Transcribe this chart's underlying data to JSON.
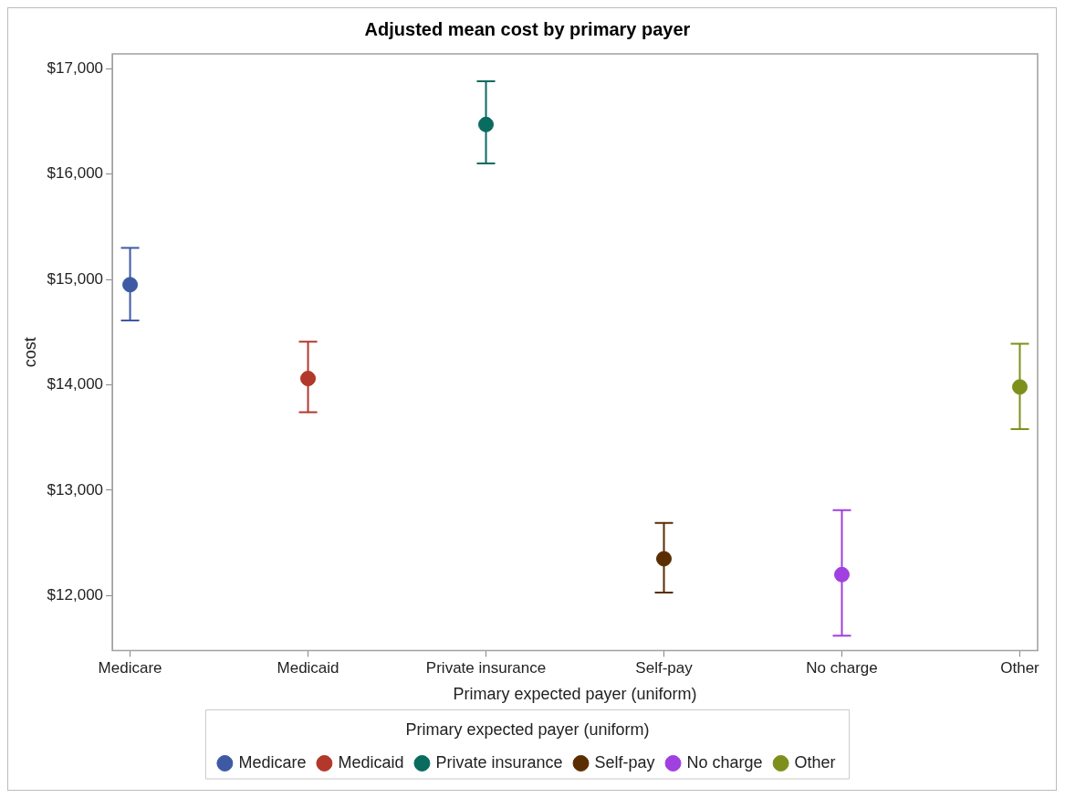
{
  "chart_data": {
    "type": "scatter",
    "title": "Adjusted mean cost by primary payer",
    "xlabel": "Primary expected payer (uniform)",
    "ylabel": "cost",
    "legend_title": "Primary expected payer (uniform)",
    "categories": [
      "Medicare",
      "Medicaid",
      "Private insurance",
      "Self-pay",
      "No charge",
      "Other"
    ],
    "series": [
      {
        "name": "Medicare",
        "color": "#3f5aa4",
        "values": [
          14950,
          null,
          null,
          null,
          null,
          null
        ],
        "errors": [
          [
            14610,
            15300
          ],
          null,
          null,
          null,
          null,
          null
        ]
      },
      {
        "name": "Medicaid",
        "color": "#b2382c",
        "values": [
          null,
          14060,
          null,
          null,
          null,
          null
        ],
        "errors": [
          null,
          [
            13740,
            14410
          ],
          null,
          null,
          null,
          null
        ]
      },
      {
        "name": "Private insurance",
        "color": "#0a6b5f",
        "values": [
          null,
          null,
          16470,
          null,
          null,
          null
        ],
        "errors": [
          null,
          null,
          [
            16100,
            16880
          ],
          null,
          null,
          null
        ]
      },
      {
        "name": "Self-pay",
        "color": "#5a2e00",
        "values": [
          null,
          null,
          null,
          12350,
          null,
          null
        ],
        "errors": [
          null,
          null,
          null,
          [
            12030,
            12690
          ],
          null,
          null
        ]
      },
      {
        "name": "No charge",
        "color": "#a040e0",
        "values": [
          null,
          null,
          null,
          null,
          12200,
          null
        ],
        "errors": [
          null,
          null,
          null,
          null,
          [
            11620,
            12810
          ],
          null
        ]
      },
      {
        "name": "Other",
        "color": "#7f8f1c",
        "values": [
          null,
          null,
          null,
          null,
          null,
          13980
        ],
        "errors": [
          null,
          null,
          null,
          null,
          null,
          [
            13580,
            14390
          ]
        ]
      }
    ],
    "ylim": [
      11480,
      17140
    ],
    "yticks": [
      {
        "value": 12000,
        "label": "$12,000"
      },
      {
        "value": 13000,
        "label": "$13,000"
      },
      {
        "value": 14000,
        "label": "$14,000"
      },
      {
        "value": 15000,
        "label": "$15,000"
      },
      {
        "value": 16000,
        "label": "$16,000"
      },
      {
        "value": 17000,
        "label": "$17,000"
      }
    ],
    "grid": false,
    "legend": "bottom",
    "marker": "circle"
  }
}
